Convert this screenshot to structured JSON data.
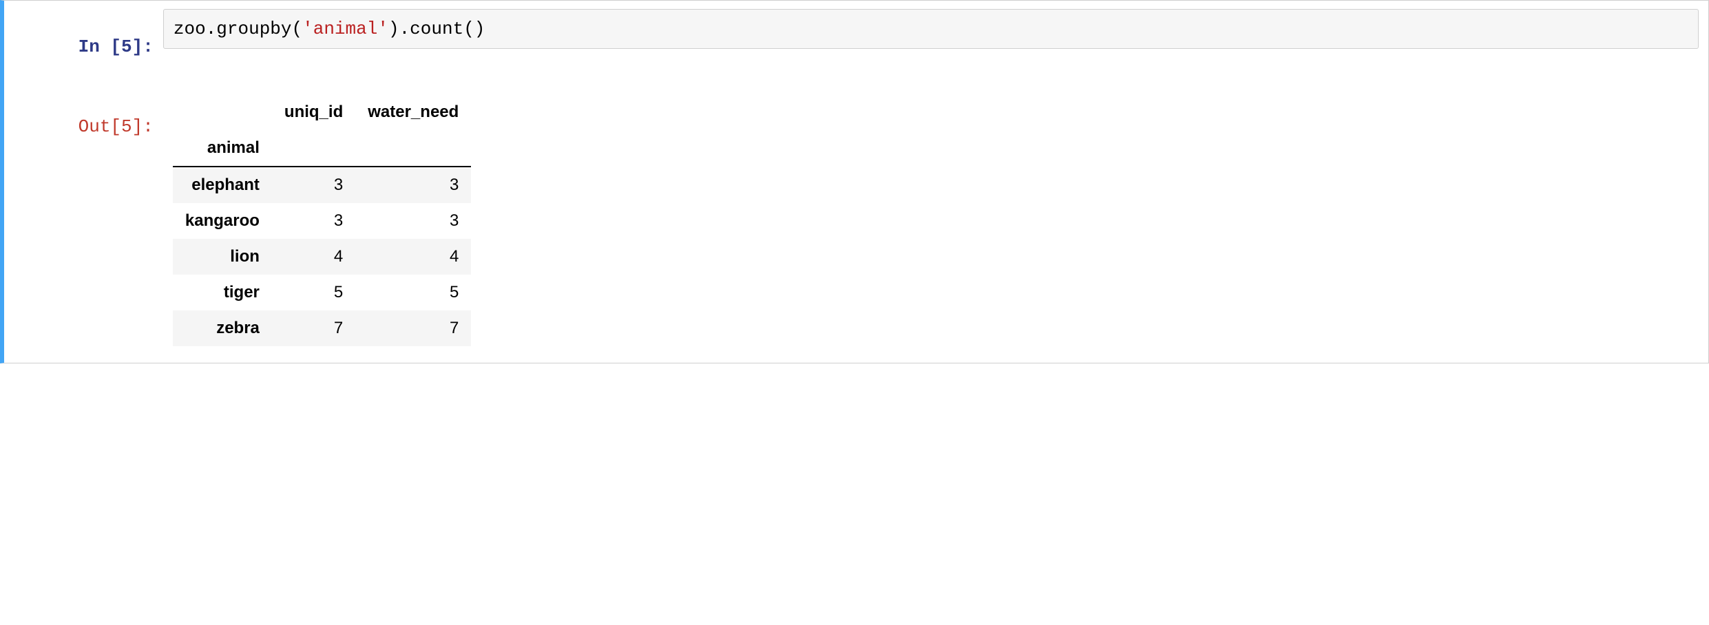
{
  "cell": {
    "exec_count": 5,
    "prompt_in_prefix": "In [",
    "prompt_in_suffix": "]:",
    "prompt_out_prefix": "Out[",
    "prompt_out_suffix": "]:",
    "code_tokens": {
      "t0": "zoo",
      "t1": ".",
      "t2": "groupby",
      "t3": "(",
      "t4": "'animal'",
      "t5": ")",
      "t6": ".",
      "t7": "count",
      "t8": "(",
      "t9": ")"
    },
    "output_table": {
      "type": "table",
      "index_name": "animal",
      "columns": [
        "uniq_id",
        "water_need"
      ],
      "rows": [
        {
          "idx": "elephant",
          "uniq_id": 3,
          "water_need": 3
        },
        {
          "idx": "kangaroo",
          "uniq_id": 3,
          "water_need": 3
        },
        {
          "idx": "lion",
          "uniq_id": 4,
          "water_need": 4
        },
        {
          "idx": "tiger",
          "uniq_id": 5,
          "water_need": 5
        },
        {
          "idx": "zebra",
          "uniq_id": 7,
          "water_need": 7
        }
      ],
      "header_fontweight": 700,
      "body_fontsize": 24,
      "stripe_odd_bg": "#f5f5f5",
      "stripe_even_bg": "#ffffff",
      "header_border_color": "#000000",
      "text_color": "#000000"
    }
  },
  "colors": {
    "cell_border": "#cfcfcf",
    "cell_accent": "#42a5f5",
    "code_bg": "#f6f6f6",
    "prompt_in": "#2e3a87",
    "prompt_out": "#c0392b",
    "string_token": "#ba2121"
  }
}
